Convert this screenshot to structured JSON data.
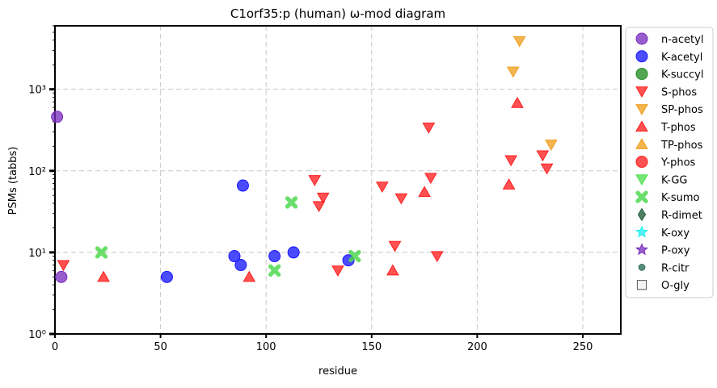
{
  "chart_data": {
    "type": "scatter",
    "title": "C1orf35:p (human) ω-mod diagram",
    "xlabel": "residue",
    "ylabel": "PSMs (tabbs)",
    "xlim": [
      0,
      268
    ],
    "ylim": [
      1,
      6000
    ],
    "yscale": "log",
    "grid": true,
    "legend_position": "right, outside plot",
    "x_ticks": [
      {
        "value": 0,
        "label": "0"
      },
      {
        "value": 50,
        "label": "50"
      },
      {
        "value": 100,
        "label": "100"
      },
      {
        "value": 150,
        "label": "150"
      },
      {
        "value": 200,
        "label": "200"
      },
      {
        "value": 250,
        "label": "250"
      }
    ],
    "y_ticks": [
      {
        "value": 1,
        "label": "10⁰"
      },
      {
        "value": 10,
        "label": "10¹"
      },
      {
        "value": 100,
        "label": "10²"
      },
      {
        "value": 1000,
        "label": "10³"
      }
    ],
    "series": [
      {
        "name": "n-acetyl",
        "marker": "circle",
        "color": "#7b2fbf",
        "points": [
          {
            "x": 1,
            "y": 460
          },
          {
            "x": 3,
            "y": 5
          }
        ]
      },
      {
        "name": "K-acetyl",
        "marker": "circle",
        "color": "#1a1aff",
        "points": [
          {
            "x": 53,
            "y": 5
          },
          {
            "x": 85,
            "y": 9
          },
          {
            "x": 88,
            "y": 7
          },
          {
            "x": 89,
            "y": 66
          },
          {
            "x": 104,
            "y": 9
          },
          {
            "x": 113,
            "y": 10
          },
          {
            "x": 139,
            "y": 8
          }
        ]
      },
      {
        "name": "K-succyl",
        "marker": "circle",
        "color": "#228b22",
        "points": []
      },
      {
        "name": "S-phos",
        "marker": "triangle-down",
        "color": "#ff2020",
        "points": [
          {
            "x": 4,
            "y": 7
          },
          {
            "x": 123,
            "y": 77
          },
          {
            "x": 127,
            "y": 47
          },
          {
            "x": 125,
            "y": 37
          },
          {
            "x": 134,
            "y": 6
          },
          {
            "x": 155,
            "y": 64
          },
          {
            "x": 161,
            "y": 12
          },
          {
            "x": 164,
            "y": 46
          },
          {
            "x": 177,
            "y": 340
          },
          {
            "x": 178,
            "y": 82
          },
          {
            "x": 181,
            "y": 9
          },
          {
            "x": 216,
            "y": 135
          },
          {
            "x": 231,
            "y": 155
          },
          {
            "x": 233,
            "y": 107
          }
        ]
      },
      {
        "name": "SP-phos",
        "marker": "triangle-down",
        "color": "#f0a020",
        "points": [
          {
            "x": 217,
            "y": 1650
          },
          {
            "x": 220,
            "y": 3900
          },
          {
            "x": 235,
            "y": 210
          }
        ]
      },
      {
        "name": "T-phos",
        "marker": "triangle-up",
        "color": "#ff2020",
        "points": [
          {
            "x": 23,
            "y": 5
          },
          {
            "x": 92,
            "y": 5
          },
          {
            "x": 160,
            "y": 6
          },
          {
            "x": 175,
            "y": 55
          },
          {
            "x": 215,
            "y": 68
          },
          {
            "x": 219,
            "y": 680
          }
        ]
      },
      {
        "name": "TP-phos",
        "marker": "triangle-up",
        "color": "#f0a020",
        "points": []
      },
      {
        "name": "Y-phos",
        "marker": "circle",
        "color": "#ff2020",
        "points": []
      },
      {
        "name": "K-GG",
        "marker": "triangle-down",
        "color": "#50e050",
        "points": []
      },
      {
        "name": "K-sumo",
        "marker": "x",
        "color": "#50d850",
        "points": [
          {
            "x": 22,
            "y": 10
          },
          {
            "x": 104,
            "y": 6
          },
          {
            "x": 112,
            "y": 41
          },
          {
            "x": 142,
            "y": 9
          }
        ]
      },
      {
        "name": "R-dimet",
        "marker": "diamond",
        "color": "#1f5e3a",
        "points": []
      },
      {
        "name": "K-oxy",
        "marker": "star",
        "color": "#22f0f0",
        "points": []
      },
      {
        "name": "P-oxy",
        "marker": "star",
        "color": "#7b2fbf",
        "points": []
      },
      {
        "name": "R-citr",
        "marker": "small-circle",
        "color": "#2e6e5a",
        "points": []
      },
      {
        "name": "O-gly",
        "marker": "square",
        "color": "#ffffff",
        "points": []
      }
    ]
  }
}
